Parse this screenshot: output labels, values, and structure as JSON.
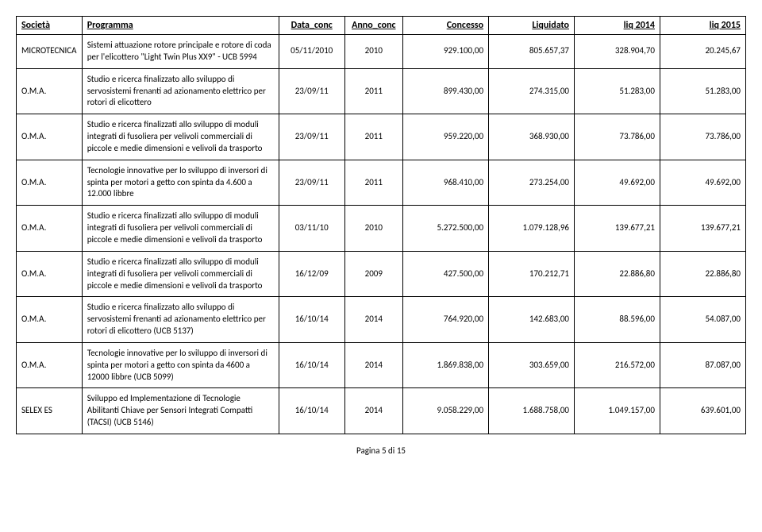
{
  "columns": [
    {
      "key": "societa",
      "label": "Società",
      "class": "col-societa"
    },
    {
      "key": "programma",
      "label": "Programma",
      "class": "col-programma"
    },
    {
      "key": "data_conc",
      "label": "Data_conc",
      "class": "col-dataconc"
    },
    {
      "key": "anno_conc",
      "label": "Anno_conc",
      "class": "col-annoconc"
    },
    {
      "key": "concesso",
      "label": "Concesso",
      "class": "col-num"
    },
    {
      "key": "liquidato",
      "label": "Liquidato",
      "class": "col-num"
    },
    {
      "key": "liq2014",
      "label": "liq 2014",
      "class": "col-num"
    },
    {
      "key": "liq2015",
      "label": "liq 2015",
      "class": "col-num"
    }
  ],
  "rows": [
    {
      "societa": "MICROTECNICA",
      "programma": "Sistemi attuazione rotore principale e rotore di coda per l'elicottero \"Light Twin Plus XX9\" - UCB 5994",
      "data_conc": "05/11/2010",
      "anno_conc": "2010",
      "concesso": "929.100,00",
      "liquidato": "805.657,37",
      "liq2014": "328.904,70",
      "liq2015": "20.245,67"
    },
    {
      "societa": "O.M.A.",
      "programma": "Studio e ricerca finalizzato allo sviluppo di servosistemi frenanti ad azionamento elettrico per rotori di elicottero",
      "data_conc": "23/09/11",
      "anno_conc": "2011",
      "concesso": "899.430,00",
      "liquidato": "274.315,00",
      "liq2014": "51.283,00",
      "liq2015": "51.283,00"
    },
    {
      "societa": "O.M.A.",
      "programma": "Studio e ricerca finalizzati allo sviluppo di moduli integrati di fusoliera per  velivoli commerciali di piccole e medie dimensioni e velivoli da trasporto",
      "data_conc": "23/09/11",
      "anno_conc": "2011",
      "concesso": "959.220,00",
      "liquidato": "368.930,00",
      "liq2014": "73.786,00",
      "liq2015": "73.786,00"
    },
    {
      "societa": "O.M.A.",
      "programma": "Tecnologie innovative per lo sviluppo di inversori di spinta per motori a getto con spinta da 4.600 a 12.000 libbre",
      "data_conc": "23/09/11",
      "anno_conc": "2011",
      "concesso": "968.410,00",
      "liquidato": "273.254,00",
      "liq2014": "49.692,00",
      "liq2015": "49.692,00"
    },
    {
      "societa": "O.M.A.",
      "programma": "Studio e ricerca finalizzati allo sviluppo di moduli integrati di fusoliera per  velivoli commerciali di piccole e medie dimensioni e velivoli da trasporto",
      "data_conc": "03/11/10",
      "anno_conc": "2010",
      "concesso": "5.272.500,00",
      "liquidato": "1.079.128,96",
      "liq2014": "139.677,21",
      "liq2015": "139.677,21"
    },
    {
      "societa": "O.M.A.",
      "programma": "Studio e ricerca finalizzati allo sviluppo di moduli integrati di fusoliera per  velivoli commerciali di piccole e medie dimensioni e velivoli da trasporto",
      "data_conc": "16/12/09",
      "anno_conc": "2009",
      "concesso": "427.500,00",
      "liquidato": "170.212,71",
      "liq2014": "22.886,80",
      "liq2015": "22.886,80"
    },
    {
      "societa": "O.M.A.",
      "programma": "Studio e ricerca finalizzato allo sviluppo di servosistemi frenanti ad azionamento elettrico per rotori di elicottero (UCB 5137)",
      "data_conc": "16/10/14",
      "anno_conc": "2014",
      "concesso": "764.920,00",
      "liquidato": "142.683,00",
      "liq2014": "88.596,00",
      "liq2015": "54.087,00"
    },
    {
      "societa": "O.M.A.",
      "programma": "Tecnologie innovative per lo sviluppo di inversori di spinta per motori a getto con spinta da 4600 a 12000 libbre (UCB 5099)",
      "data_conc": "16/10/14",
      "anno_conc": "2014",
      "concesso": "1.869.838,00",
      "liquidato": "303.659,00",
      "liq2014": "216.572,00",
      "liq2015": "87.087,00"
    },
    {
      "societa": "SELEX ES",
      "programma": "Sviluppo ed Implementazione di Tecnologie Abilitanti Chiave per Sensori Integrati Compatti (TACSI) (UCB 5146)",
      "data_conc": "16/10/14",
      "anno_conc": "2014",
      "concesso": "9.058.229,00",
      "liquidato": "1.688.758,00",
      "liq2014": "1.049.157,00",
      "liq2015": "639.601,00"
    }
  ],
  "footer": "Pagina 5 di 15"
}
